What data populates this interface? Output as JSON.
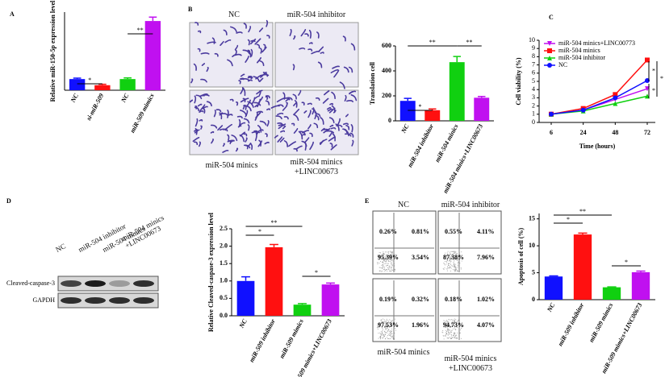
{
  "figure": {
    "panel_letters": [
      "A",
      "B",
      "C",
      "D",
      "E"
    ],
    "migration_images": {
      "labels": [
        "NC",
        "miR-504 inhibitor",
        "miR-504 minics",
        "miR-504 minics\n+LINC00673"
      ]
    },
    "western_blot": {
      "lanes": [
        "NC",
        "miR-504 inhibitor",
        "miR-504 minics",
        "miR-504 minics\n+LINC00673"
      ],
      "proteins": [
        "Cleaved-caspase-3",
        "GAPDH"
      ]
    },
    "flow_cytometry": {
      "labels": [
        "NC",
        "miR-504 inhibitor",
        "miR-504 minics",
        "miR-504 minics\n+LINC00673"
      ],
      "quadrants": [
        [
          "0.26%",
          "0.81%",
          "95.39%",
          "3.54%"
        ],
        [
          "0.55%",
          "4.11%",
          "87.38%",
          "7.96%"
        ],
        [
          "0.19%",
          "0.32%",
          "97.53%",
          "1.96%"
        ],
        [
          "0.18%",
          "1.02%",
          "94.73%",
          "4.07%"
        ]
      ]
    }
  },
  "chart_data": [
    {
      "type": "bar",
      "y_label": "Relative miR-150-5p expression level",
      "categories": [
        "NC",
        "si-miR-509",
        "NC",
        "miR-509 mimics"
      ],
      "values": [
        1.0,
        0.45,
        1.0,
        6.2
      ],
      "errors": [
        0.08,
        0.08,
        0.1,
        0.35
      ],
      "colors": [
        "#1010ff",
        "#ff1010",
        "#10d010",
        "#c010f0"
      ],
      "ylim": [
        0,
        7
      ],
      "annotations": [
        "*",
        "**"
      ]
    },
    {
      "type": "bar",
      "y_label": "Translation cell",
      "categories": [
        "NC",
        "miR-504 inhibitor",
        "miR-504 minics",
        "miR-504 minics+LINC00673"
      ],
      "values": [
        160,
        85,
        470,
        185
      ],
      "errors": [
        20,
        10,
        45,
        10
      ],
      "colors": [
        "#1010ff",
        "#ff1010",
        "#10d010",
        "#c010f0"
      ],
      "ylim": [
        0,
        600
      ],
      "yticks": [
        0,
        200,
        400,
        600
      ],
      "annotations": [
        "*",
        "**",
        "**"
      ]
    },
    {
      "type": "line",
      "y_label": "Cell viability (%)",
      "x_label": "Time (hours)",
      "categories": [
        "6",
        "24",
        "48",
        "72"
      ],
      "series": [
        {
          "name": "miR-504  minics+LINC00773",
          "color": "#c010f0",
          "marker": "v",
          "values": [
            1.0,
            1.5,
            2.8,
            4.1
          ]
        },
        {
          "name": "miR-504  minics",
          "color": "#ff1010",
          "marker": "s",
          "values": [
            1.0,
            1.7,
            3.4,
            7.6
          ]
        },
        {
          "name": "miR-504  inhibitor",
          "color": "#10d010",
          "marker": "^",
          "values": [
            1.0,
            1.4,
            2.3,
            3.2
          ]
        },
        {
          "name": "NC",
          "color": "#1010ff",
          "marker": "o",
          "values": [
            1.0,
            1.5,
            3.0,
            5.1
          ]
        }
      ],
      "ylim": [
        0,
        10
      ],
      "yticks": [
        0,
        1,
        2,
        3,
        4,
        5,
        6,
        7,
        8,
        9,
        10
      ],
      "annotations": [
        "*",
        "*",
        "*"
      ]
    },
    {
      "type": "bar",
      "y_label": "Relative Cleaved-caspase-3 expression level",
      "categories": [
        "NC",
        "miR-509 inhibitor",
        "miR-509 mimics",
        "miR-509 mimics+LINC00673"
      ],
      "values": [
        1.0,
        1.97,
        0.32,
        0.9
      ],
      "errors": [
        0.12,
        0.08,
        0.03,
        0.04
      ],
      "colors": [
        "#1010ff",
        "#ff1010",
        "#10d010",
        "#c010f0"
      ],
      "ylim": [
        0,
        2.5
      ],
      "yticks": [
        {
          "value": 0,
          "label": "0.0"
        },
        {
          "value": 0.5,
          "label": "0.5"
        },
        {
          "value": 1,
          "label": "1.0"
        },
        {
          "value": 1.5,
          "label": "1.5"
        },
        {
          "value": 2,
          "label": "2.0"
        },
        {
          "value": 2.5,
          "label": "2.5"
        }
      ],
      "annotations": [
        "**",
        "*",
        "*"
      ]
    },
    {
      "type": "bar",
      "y_label": "Apoptosis of cell (%)",
      "categories": [
        "NC",
        "miR-509 inhibitor",
        "miR-509 mimics",
        "miR-509 mimics+LINC00673"
      ],
      "values": [
        4.3,
        12.1,
        2.3,
        5.1
      ],
      "errors": [
        0.12,
        0.25,
        0.08,
        0.2
      ],
      "colors": [
        "#1010ff",
        "#ff1010",
        "#10d010",
        "#c010f0"
      ],
      "ylim": [
        0,
        16
      ],
      "yticks": [
        0,
        5,
        10,
        15
      ],
      "annotations": [
        "**",
        "*",
        "*"
      ]
    }
  ]
}
